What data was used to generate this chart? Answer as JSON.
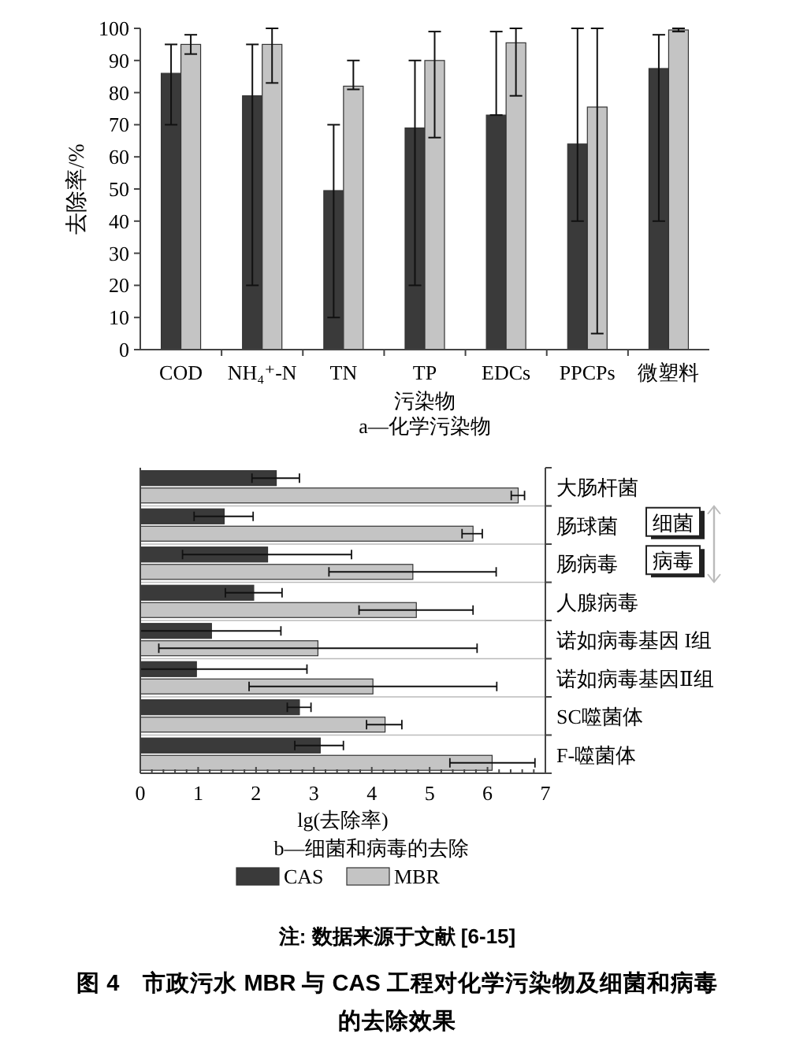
{
  "chart_data": [
    {
      "type": "bar",
      "subtitle": "a—化学污染物",
      "xlabel": "污染物",
      "ylabel": "去除率/%",
      "categories": [
        "COD",
        "NH₄⁺-N",
        "TN",
        "TP",
        "EDCs",
        "PPCPs",
        "微塑料"
      ],
      "series": [
        {
          "color": "#3a3a3a",
          "values": [
            86,
            79,
            49.5,
            69,
            73,
            64,
            87.5
          ],
          "errors": [
            [
              70,
              95
            ],
            [
              20,
              95
            ],
            [
              10,
              70
            ],
            [
              20,
              90
            ],
            [
              73,
              99
            ],
            [
              40,
              100
            ],
            [
              40,
              98
            ]
          ]
        },
        {
          "color": "#c4c4c4",
          "values": [
            95,
            95,
            82,
            90,
            95.5,
            75.5,
            99.5
          ],
          "errors": [
            [
              92,
              98
            ],
            [
              83,
              100
            ],
            [
              81,
              90
            ],
            [
              66,
              99
            ],
            [
              79,
              100
            ],
            [
              5,
              100
            ],
            [
              99,
              100
            ]
          ]
        }
      ],
      "ylim": [
        0,
        100
      ],
      "yticks": [
        0,
        10,
        20,
        30,
        40,
        50,
        60,
        70,
        80,
        90,
        100
      ],
      "grid": false
    },
    {
      "type": "bar",
      "orientation": "horizontal",
      "subtitle": "b—细菌和病毒的去除",
      "xlabel": "lg(去除率)",
      "categories": [
        "大肠杆菌",
        "肠球菌",
        "肠病毒",
        "人腺病毒",
        "诺如病毒基因 I组",
        "诺如病毒基因Ⅱ组",
        "SC噬菌体",
        "F-噬菌体"
      ],
      "series": [
        {
          "name": "CAS",
          "color": "#3a3a3a",
          "values": [
            2.35,
            1.45,
            2.2,
            1.96,
            1.23,
            0.97,
            2.75,
            3.11
          ],
          "errors": [
            [
              1.93,
              2.75
            ],
            [
              0.93,
              1.95
            ],
            [
              0.73,
              3.65
            ],
            [
              1.47,
              2.45
            ],
            [
              0,
              2.43
            ],
            [
              0,
              2.88
            ],
            [
              2.54,
              2.95
            ],
            [
              2.67,
              3.51
            ]
          ]
        },
        {
          "name": "MBR",
          "color": "#c4c4c4",
          "values": [
            6.53,
            5.75,
            4.71,
            4.77,
            3.07,
            4.02,
            4.23,
            6.08
          ],
          "errors": [
            [
              6.41,
              6.64
            ],
            [
              5.56,
              5.91
            ],
            [
              3.26,
              6.15
            ],
            [
              3.78,
              5.75
            ],
            [
              0.32,
              5.82
            ],
            [
              1.88,
              6.16
            ],
            [
              3.91,
              4.52
            ],
            [
              5.35,
              6.82
            ]
          ]
        }
      ],
      "xlim": [
        0,
        7
      ],
      "xticks": [
        0,
        1,
        2,
        3,
        4,
        5,
        6,
        7
      ],
      "grid": false,
      "legend": "bottom",
      "annotations": [
        "细菌",
        "病毒",
        "注: 数据来源于文献 [6-15]",
        "图 4　市政污水 MBR 与 CAS 工程对化学污染物及细菌和病毒的去除效果"
      ]
    }
  ]
}
